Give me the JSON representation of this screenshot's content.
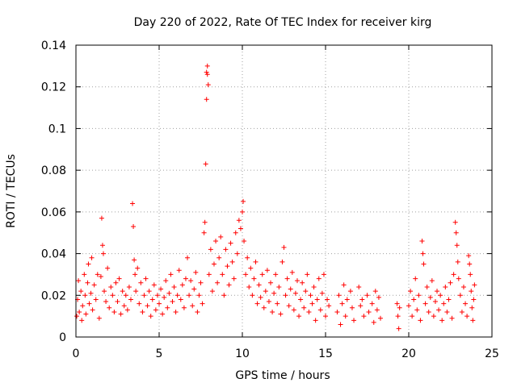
{
  "chart_data": {
    "type": "scatter",
    "title": "Day 220 of 2022, Rate Of TEC Index for receiver kirg",
    "xlabel": "GPS time / hours",
    "ylabel": "ROTI / TECUs",
    "xlim": [
      0,
      25
    ],
    "ylim": [
      0,
      0.14
    ],
    "xticks": [
      0,
      5,
      10,
      15,
      20,
      25
    ],
    "xtick_labels": [
      "0",
      "5",
      "10",
      "15",
      "20",
      "25"
    ],
    "yticks": [
      0,
      0.02,
      0.04,
      0.06,
      0.08,
      0.1,
      0.12,
      0.14
    ],
    "ytick_labels": [
      "0",
      "0.02",
      "0.04",
      "0.06",
      "0.08",
      "0.1",
      "0.12",
      "0.14"
    ],
    "grid": true,
    "marker": "+",
    "color": "#ff0000",
    "series": [
      {
        "name": "ROTI",
        "points": [
          [
            0.05,
            0.01
          ],
          [
            0.1,
            0.018
          ],
          [
            0.15,
            0.027
          ],
          [
            0.2,
            0.012
          ],
          [
            0.3,
            0.022
          ],
          [
            0.35,
            0.008
          ],
          [
            0.4,
            0.015
          ],
          [
            0.5,
            0.03
          ],
          [
            0.55,
            0.02
          ],
          [
            0.6,
            0.011
          ],
          [
            0.7,
            0.026
          ],
          [
            0.75,
            0.035
          ],
          [
            0.8,
            0.016
          ],
          [
            0.9,
            0.021
          ],
          [
            0.95,
            0.038
          ],
          [
            1.0,
            0.013
          ],
          [
            1.1,
            0.025
          ],
          [
            1.2,
            0.018
          ],
          [
            1.3,
            0.03
          ],
          [
            1.4,
            0.009
          ],
          [
            1.5,
            0.029
          ],
          [
            1.55,
            0.057
          ],
          [
            1.6,
            0.044
          ],
          [
            1.65,
            0.04
          ],
          [
            1.7,
            0.022
          ],
          [
            1.8,
            0.017
          ],
          [
            1.9,
            0.033
          ],
          [
            2.0,
            0.014
          ],
          [
            2.1,
            0.024
          ],
          [
            2.2,
            0.02
          ],
          [
            2.3,
            0.012
          ],
          [
            2.4,
            0.026
          ],
          [
            2.5,
            0.017
          ],
          [
            2.6,
            0.028
          ],
          [
            2.7,
            0.011
          ],
          [
            2.8,
            0.022
          ],
          [
            2.9,
            0.015
          ],
          [
            3.0,
            0.02
          ],
          [
            3.1,
            0.013
          ],
          [
            3.2,
            0.024
          ],
          [
            3.3,
            0.018
          ],
          [
            3.4,
            0.064
          ],
          [
            3.45,
            0.053
          ],
          [
            3.5,
            0.037
          ],
          [
            3.55,
            0.03
          ],
          [
            3.6,
            0.022
          ],
          [
            3.7,
            0.033
          ],
          [
            3.8,
            0.016
          ],
          [
            3.9,
            0.026
          ],
          [
            4.0,
            0.012
          ],
          [
            4.1,
            0.02
          ],
          [
            4.2,
            0.028
          ],
          [
            4.3,
            0.015
          ],
          [
            4.4,
            0.022
          ],
          [
            4.5,
            0.01
          ],
          [
            4.6,
            0.018
          ],
          [
            4.7,
            0.025
          ],
          [
            4.8,
            0.013
          ],
          [
            4.9,
            0.02
          ],
          [
            5.0,
            0.016
          ],
          [
            5.1,
            0.023
          ],
          [
            5.2,
            0.011
          ],
          [
            5.3,
            0.019
          ],
          [
            5.4,
            0.027
          ],
          [
            5.5,
            0.014
          ],
          [
            5.6,
            0.021
          ],
          [
            5.7,
            0.03
          ],
          [
            5.8,
            0.017
          ],
          [
            5.9,
            0.024
          ],
          [
            6.0,
            0.012
          ],
          [
            6.1,
            0.02
          ],
          [
            6.2,
            0.032
          ],
          [
            6.3,
            0.018
          ],
          [
            6.4,
            0.025
          ],
          [
            6.5,
            0.014
          ],
          [
            6.6,
            0.028
          ],
          [
            6.7,
            0.038
          ],
          [
            6.8,
            0.02
          ],
          [
            6.9,
            0.027
          ],
          [
            7.0,
            0.015
          ],
          [
            7.1,
            0.023
          ],
          [
            7.2,
            0.031
          ],
          [
            7.3,
            0.012
          ],
          [
            7.4,
            0.02
          ],
          [
            7.5,
            0.026
          ],
          [
            7.6,
            0.016
          ],
          [
            7.7,
            0.05
          ],
          [
            7.75,
            0.055
          ],
          [
            7.8,
            0.083
          ],
          [
            7.85,
            0.127
          ],
          [
            7.9,
            0.13
          ],
          [
            7.95,
            0.121
          ],
          [
            7.85,
            0.114
          ],
          [
            7.9,
            0.126
          ],
          [
            8.0,
            0.03
          ],
          [
            8.1,
            0.042
          ],
          [
            8.2,
            0.022
          ],
          [
            8.3,
            0.035
          ],
          [
            8.4,
            0.046
          ],
          [
            8.5,
            0.026
          ],
          [
            8.6,
            0.038
          ],
          [
            8.7,
            0.048
          ],
          [
            8.8,
            0.03
          ],
          [
            8.9,
            0.02
          ],
          [
            9.0,
            0.042
          ],
          [
            9.1,
            0.034
          ],
          [
            9.2,
            0.025
          ],
          [
            9.3,
            0.045
          ],
          [
            9.4,
            0.036
          ],
          [
            9.5,
            0.028
          ],
          [
            9.6,
            0.05
          ],
          [
            9.7,
            0.04
          ],
          [
            9.8,
            0.056
          ],
          [
            9.9,
            0.052
          ],
          [
            10.0,
            0.06
          ],
          [
            10.05,
            0.065
          ],
          [
            10.1,
            0.046
          ],
          [
            10.2,
            0.03
          ],
          [
            10.3,
            0.038
          ],
          [
            10.4,
            0.024
          ],
          [
            10.5,
            0.033
          ],
          [
            10.6,
            0.02
          ],
          [
            10.7,
            0.028
          ],
          [
            10.8,
            0.036
          ],
          [
            10.9,
            0.016
          ],
          [
            11.0,
            0.025
          ],
          [
            11.1,
            0.019
          ],
          [
            11.2,
            0.03
          ],
          [
            11.3,
            0.014
          ],
          [
            11.4,
            0.022
          ],
          [
            11.5,
            0.032
          ],
          [
            11.6,
            0.017
          ],
          [
            11.7,
            0.026
          ],
          [
            11.8,
            0.012
          ],
          [
            11.9,
            0.021
          ],
          [
            12.0,
            0.03
          ],
          [
            12.1,
            0.016
          ],
          [
            12.2,
            0.024
          ],
          [
            12.3,
            0.011
          ],
          [
            12.4,
            0.036
          ],
          [
            12.5,
            0.043
          ],
          [
            12.6,
            0.02
          ],
          [
            12.7,
            0.028
          ],
          [
            12.8,
            0.015
          ],
          [
            12.9,
            0.023
          ],
          [
            13.0,
            0.031
          ],
          [
            13.1,
            0.013
          ],
          [
            13.2,
            0.021
          ],
          [
            13.3,
            0.027
          ],
          [
            13.4,
            0.01
          ],
          [
            13.5,
            0.018
          ],
          [
            13.6,
            0.026
          ],
          [
            13.7,
            0.014
          ],
          [
            13.8,
            0.022
          ],
          [
            13.9,
            0.03
          ],
          [
            14.0,
            0.012
          ],
          [
            14.1,
            0.02
          ],
          [
            14.2,
            0.016
          ],
          [
            14.3,
            0.024
          ],
          [
            14.4,
            0.008
          ],
          [
            14.5,
            0.018
          ],
          [
            14.6,
            0.028
          ],
          [
            14.7,
            0.013
          ],
          [
            14.8,
            0.021
          ],
          [
            14.9,
            0.03
          ],
          [
            15.0,
            0.01
          ],
          [
            15.1,
            0.018
          ],
          [
            15.2,
            0.015
          ],
          [
            15.7,
            0.012
          ],
          [
            15.8,
            0.02
          ],
          [
            15.9,
            0.006
          ],
          [
            16.0,
            0.016
          ],
          [
            16.1,
            0.025
          ],
          [
            16.2,
            0.01
          ],
          [
            16.3,
            0.018
          ],
          [
            16.5,
            0.022
          ],
          [
            16.6,
            0.014
          ],
          [
            16.7,
            0.008
          ],
          [
            17.0,
            0.024
          ],
          [
            17.1,
            0.015
          ],
          [
            17.2,
            0.018
          ],
          [
            17.3,
            0.01
          ],
          [
            17.5,
            0.02
          ],
          [
            17.6,
            0.012
          ],
          [
            17.8,
            0.016
          ],
          [
            17.9,
            0.007
          ],
          [
            18.0,
            0.022
          ],
          [
            18.1,
            0.013
          ],
          [
            18.2,
            0.019
          ],
          [
            18.3,
            0.009
          ],
          [
            19.3,
            0.016
          ],
          [
            19.35,
            0.01
          ],
          [
            19.4,
            0.004
          ],
          [
            19.45,
            0.014
          ],
          [
            20.0,
            0.015
          ],
          [
            20.1,
            0.022
          ],
          [
            20.2,
            0.01
          ],
          [
            20.3,
            0.018
          ],
          [
            20.4,
            0.028
          ],
          [
            20.5,
            0.013
          ],
          [
            20.6,
            0.02
          ],
          [
            20.7,
            0.008
          ],
          [
            20.8,
            0.046
          ],
          [
            20.85,
            0.04
          ],
          [
            20.9,
            0.035
          ],
          [
            21.0,
            0.016
          ],
          [
            21.1,
            0.024
          ],
          [
            21.2,
            0.012
          ],
          [
            21.3,
            0.019
          ],
          [
            21.4,
            0.027
          ],
          [
            21.5,
            0.01
          ],
          [
            21.6,
            0.017
          ],
          [
            21.7,
            0.022
          ],
          [
            21.8,
            0.013
          ],
          [
            21.9,
            0.02
          ],
          [
            22.0,
            0.008
          ],
          [
            22.1,
            0.016
          ],
          [
            22.2,
            0.024
          ],
          [
            22.3,
            0.012
          ],
          [
            22.4,
            0.018
          ],
          [
            22.5,
            0.026
          ],
          [
            22.6,
            0.009
          ],
          [
            22.7,
            0.03
          ],
          [
            22.8,
            0.055
          ],
          [
            22.85,
            0.05
          ],
          [
            22.9,
            0.044
          ],
          [
            22.95,
            0.036
          ],
          [
            23.0,
            0.028
          ],
          [
            23.1,
            0.02
          ],
          [
            23.2,
            0.012
          ],
          [
            23.3,
            0.024
          ],
          [
            23.4,
            0.016
          ],
          [
            23.5,
            0.01
          ],
          [
            23.6,
            0.039
          ],
          [
            23.65,
            0.035
          ],
          [
            23.7,
            0.03
          ],
          [
            23.75,
            0.022
          ],
          [
            23.8,
            0.014
          ],
          [
            23.85,
            0.008
          ],
          [
            23.9,
            0.018
          ],
          [
            23.95,
            0.025
          ]
        ]
      }
    ]
  }
}
